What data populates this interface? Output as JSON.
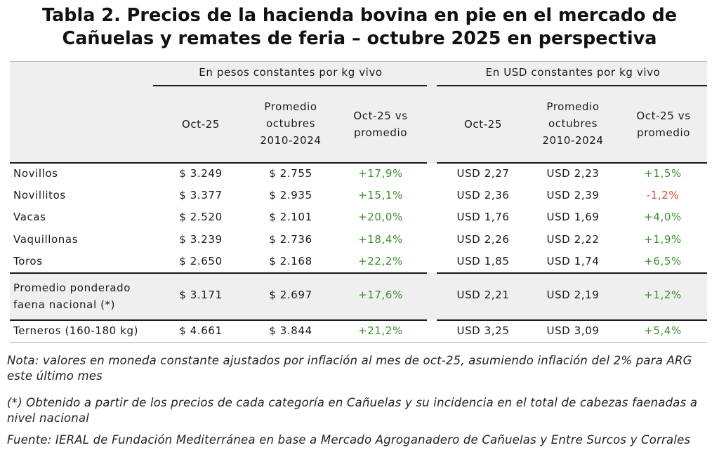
{
  "title_line1": "Tabla 2. Precios de la hacienda bovina en pie en el mercado de",
  "title_line2": "Cañuelas y remates de feria – octubre 2025 en perspectiva",
  "groups": {
    "pesos": "En pesos constantes por kg vivo",
    "usd": "En USD constantes por kg vivo"
  },
  "columns": {
    "oct": "Oct-25",
    "promedio": "Promedio octubres 2010-2024",
    "vs": "Oct-25 vs promedio"
  },
  "rows": [
    {
      "label": "Novillos",
      "p_oct": "$ 3.249",
      "p_prom": "$ 2.755",
      "p_vs": "+17,9%",
      "u_oct": "USD 2,27",
      "u_prom": "USD 2,23",
      "u_vs": "+1,5%"
    },
    {
      "label": "Novillitos",
      "p_oct": "$ 3.377",
      "p_prom": "$ 2.935",
      "p_vs": "+15,1%",
      "u_oct": "USD 2,36",
      "u_prom": "USD 2,39",
      "u_vs": "-1,2%"
    },
    {
      "label": "Vacas",
      "p_oct": "$ 2.520",
      "p_prom": "$ 2.101",
      "p_vs": "+20,0%",
      "u_oct": "USD 1,76",
      "u_prom": "USD 1,69",
      "u_vs": "+4,0%"
    },
    {
      "label": "Vaquillonas",
      "p_oct": "$ 3.239",
      "p_prom": "$ 2.736",
      "p_vs": "+18,4%",
      "u_oct": "USD 2,26",
      "u_prom": "USD 2,22",
      "u_vs": "+1,9%"
    },
    {
      "label": "Toros",
      "p_oct": "$ 2.650",
      "p_prom": "$ 2.168",
      "p_vs": "+22,2%",
      "u_oct": "USD 1,85",
      "u_prom": "USD 1,74",
      "u_vs": "+6,5%"
    },
    {
      "label": "Promedio ponderado faena nacional (*)",
      "p_oct": "$ 3.171",
      "p_prom": "$ 2.697",
      "p_vs": "+17,6%",
      "u_oct": "USD 2,21",
      "u_prom": "USD 2,19",
      "u_vs": "+1,2%"
    },
    {
      "label": "Terneros (160-180 kg)",
      "p_oct": "$ 4.661",
      "p_prom": "$ 3.844",
      "p_vs": "+21,2%",
      "u_oct": "USD 3,25",
      "u_prom": "USD 3,09",
      "u_vs": "+5,4%"
    }
  ],
  "notes": {
    "nota": "Nota: valores en moneda constante ajustados por inflación al mes de oct-25, asumiendo inflación del 2% para ARG este último mes",
    "asterisco": "(*) Obtenido a partir de los precios de cada categoría en Cañuelas y su incidencia en el total de cabezas faenadas a nivel nacional",
    "fuente": "Fuente: IERAL de Fundación Mediterránea en base a Mercado Agroganadero de Cañuelas y Entre Surcos y Corrales"
  },
  "colors": {
    "positive": "#3c8f2e",
    "negative": "#e0453a",
    "header_bg": "#efefef"
  }
}
